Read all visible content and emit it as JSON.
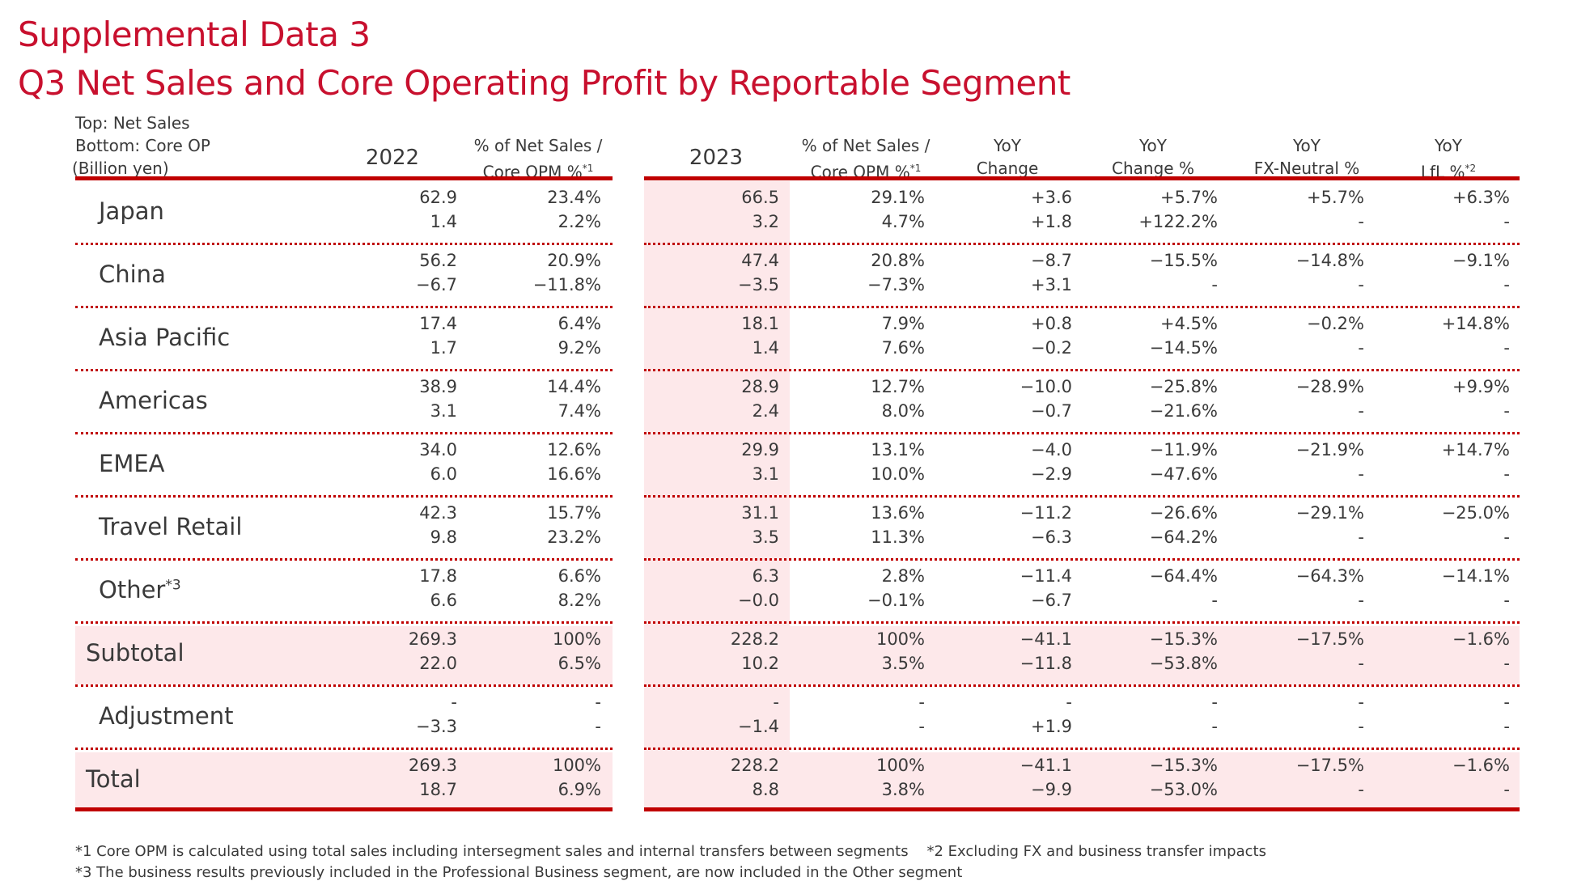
{
  "title": {
    "line1": "Supplemental Data 3",
    "line2": "Q3 Net Sales and Core Operating Profit by Reportable Segment"
  },
  "legend": {
    "top": "Top: Net Sales",
    "bottom": "Bottom: Core OP",
    "unit": "(Billion yen)"
  },
  "headers": {
    "y2022": "2022",
    "pct2022_l1": "% of Net Sales /",
    "pct2022_l2": "Core OPM %",
    "pct2022_sup": "*1",
    "y2023": "2023",
    "pct2023_l1": "% of Net Sales /",
    "pct2023_l2": "Core OPM %",
    "pct2023_sup": "*1",
    "yoy_l1": "YoY",
    "yoy_l2": "Change",
    "yoypct_l1": "YoY",
    "yoypct_l2": "Change %",
    "fx_l1": "YoY",
    "fx_l2": "FX-Neutral %",
    "lfl_l1": "YoY",
    "lfl_l2": "LfL %",
    "lfl_sup": "*2"
  },
  "rows": [
    {
      "segment": "Japan",
      "sup": "",
      "top": [
        "62.9",
        "23.4%",
        "66.5",
        "29.1%",
        "+3.6",
        "+5.7%",
        "+5.7%",
        "+6.3%"
      ],
      "bottom": [
        "1.4",
        "2.2%",
        "3.2",
        "4.7%",
        "+1.8",
        "+122.2%",
        "-",
        "-"
      ]
    },
    {
      "segment": "China",
      "sup": "",
      "top": [
        "56.2",
        "20.9%",
        "47.4",
        "20.8%",
        "−8.7",
        "−15.5%",
        "−14.8%",
        "−9.1%"
      ],
      "bottom": [
        "−6.7",
        "−11.8%",
        "−3.5",
        "−7.3%",
        "+3.1",
        "-",
        "-",
        "-"
      ]
    },
    {
      "segment": "Asia Pacific",
      "sup": "",
      "top": [
        "17.4",
        "6.4%",
        "18.1",
        "7.9%",
        "+0.8",
        "+4.5%",
        "−0.2%",
        "+14.8%"
      ],
      "bottom": [
        "1.7",
        "9.2%",
        "1.4",
        "7.6%",
        "−0.2",
        "−14.5%",
        "-",
        "-"
      ]
    },
    {
      "segment": "Americas",
      "sup": "",
      "top": [
        "38.9",
        "14.4%",
        "28.9",
        "12.7%",
        "−10.0",
        "−25.8%",
        "−28.9%",
        "+9.9%"
      ],
      "bottom": [
        "3.1",
        "7.4%",
        "2.4",
        "8.0%",
        "−0.7",
        "−21.6%",
        "-",
        "-"
      ]
    },
    {
      "segment": "EMEA",
      "sup": "",
      "top": [
        "34.0",
        "12.6%",
        "29.9",
        "13.1%",
        "−4.0",
        "−11.9%",
        "−21.9%",
        "+14.7%"
      ],
      "bottom": [
        "6.0",
        "16.6%",
        "3.1",
        "10.0%",
        "−2.9",
        "−47.6%",
        "-",
        "-"
      ]
    },
    {
      "segment": "Travel Retail",
      "sup": "",
      "top": [
        "42.3",
        "15.7%",
        "31.1",
        "13.6%",
        "−11.2",
        "−26.6%",
        "−29.1%",
        "−25.0%"
      ],
      "bottom": [
        "9.8",
        "23.2%",
        "3.5",
        "11.3%",
        "−6.3",
        "−64.2%",
        "-",
        "-"
      ]
    },
    {
      "segment": "Other",
      "sup": "*3",
      "top": [
        "17.8",
        "6.6%",
        "6.3",
        "2.8%",
        "−11.4",
        "−64.4%",
        "−64.3%",
        "−14.1%"
      ],
      "bottom": [
        "6.6",
        "8.2%",
        "−0.0",
        "−0.1%",
        "−6.7",
        "-",
        "-",
        "-"
      ]
    },
    {
      "segment": "Subtotal",
      "sup": "",
      "top": [
        "269.3",
        "100%",
        "228.2",
        "100%",
        "−41.1",
        "−15.3%",
        "−17.5%",
        "−1.6%"
      ],
      "bottom": [
        "22.0",
        "6.5%",
        "10.2",
        "3.5%",
        "−11.8",
        "−53.8%",
        "-",
        "-"
      ]
    },
    {
      "segment": "Adjustment",
      "sup": "",
      "top": [
        "-",
        "-",
        "-",
        "-",
        "-",
        "-",
        "-",
        "-"
      ],
      "bottom": [
        "−3.3",
        "-",
        "−1.4",
        "-",
        "+1.9",
        "-",
        "-",
        "-"
      ]
    },
    {
      "segment": "Total",
      "sup": "",
      "top": [
        "269.3",
        "100%",
        "228.2",
        "100%",
        "−41.1",
        "−15.3%",
        "−17.5%",
        "−1.6%"
      ],
      "bottom": [
        "18.7",
        "6.9%",
        "8.8",
        "3.8%",
        "−9.9",
        "−53.0%",
        "-",
        "-"
      ]
    }
  ],
  "footnotes": {
    "line1": "*1 Core OPM is calculated using total sales including intersegment sales and internal transfers between segments    *2 Excluding FX and business transfer impacts",
    "line2": "*3 The business results previously included in the Professional Business segment, are now included in the Other segment"
  }
}
